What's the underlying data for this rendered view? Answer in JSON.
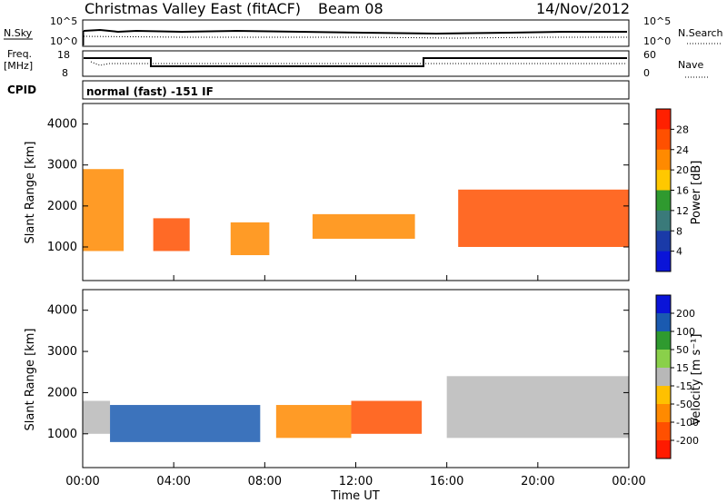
{
  "header": {
    "station": "Christmas Valley East (fitACF)",
    "beam": "Beam 08",
    "date": "14/Nov/2012"
  },
  "top_panels": {
    "nsky_label": "N.Sky",
    "nsearch_label": "N.Search",
    "nsky_ticks": [
      "10^5",
      "10^0"
    ],
    "nsearch_ticks": [
      "10^5",
      "10^0"
    ],
    "freq_label_1": "Freq.",
    "freq_label_2": "[MHz]",
    "freq_ticks": [
      "18",
      "8"
    ],
    "nave_label": "Nave",
    "nave_ticks": [
      "60",
      "0"
    ],
    "cpid_label": "CPID",
    "cpid_text": "normal (fast) -151 IF"
  },
  "chart_data": [
    {
      "type": "heatmap",
      "name": "Power",
      "ylabel": "Slant Range [km]",
      "ylim": [
        180,
        4500
      ],
      "yticks": [
        1000,
        2000,
        3000,
        4000
      ],
      "colorbar_label": "Power [dB]",
      "colorbar_ticks": [
        "28",
        "24",
        "20",
        "16",
        "12",
        "8",
        "4"
      ],
      "colorbar_colors": [
        "#ff2000",
        "#ff5000",
        "#ff8a00",
        "#ffc800",
        "#2f9a2f",
        "#3a7a7a",
        "#1a3aa8",
        "#0a14d8"
      ],
      "regions": [
        {
          "x0": 0.0,
          "x1": 1.8,
          "y0": 900,
          "y1": 2900,
          "value": 22
        },
        {
          "x0": 3.1,
          "x1": 4.7,
          "y0": 900,
          "y1": 1700,
          "value": 26
        },
        {
          "x0": 6.5,
          "x1": 8.2,
          "y0": 800,
          "y1": 1600,
          "value": 20
        },
        {
          "x0": 10.1,
          "x1": 14.6,
          "y0": 1200,
          "y1": 1800,
          "value": 22
        },
        {
          "x0": 16.5,
          "x1": 24.0,
          "y0": 1000,
          "y1": 2400,
          "value": 26
        }
      ]
    },
    {
      "type": "heatmap",
      "name": "Velocity",
      "ylabel": "Slant Range [km]",
      "ylim": [
        180,
        4500
      ],
      "yticks": [
        1000,
        2000,
        3000,
        4000
      ],
      "xlabel": "Time UT",
      "x_ticks": [
        "00:00",
        "04:00",
        "08:00",
        "12:00",
        "16:00",
        "20:00",
        "00:00"
      ],
      "colorbar_label": "Velocity [m s⁻¹]",
      "colorbar_ticks": [
        "200",
        "100",
        "50",
        "15",
        "-15",
        "-50",
        "-100",
        "-200"
      ],
      "colorbar_colors": [
        "#0a14d8",
        "#1a5ab0",
        "#2f9a2f",
        "#8ad04a",
        "#b8b8b8",
        "#ffc000",
        "#ff8a00",
        "#ff5000",
        "#ff1a00"
      ],
      "regions": [
        {
          "x0": 0.0,
          "x1": 1.2,
          "y0": 1000,
          "y1": 1800,
          "value": 0
        },
        {
          "x0": 1.2,
          "x1": 7.8,
          "y0": 800,
          "y1": 1700,
          "value": 180
        },
        {
          "x0": 8.5,
          "x1": 11.8,
          "y0": 900,
          "y1": 1700,
          "value": -60
        },
        {
          "x0": 11.8,
          "x1": 14.9,
          "y0": 1000,
          "y1": 1800,
          "value": -120
        },
        {
          "x0": 16.0,
          "x1": 24.0,
          "y0": 900,
          "y1": 2400,
          "value": 0
        }
      ]
    }
  ]
}
